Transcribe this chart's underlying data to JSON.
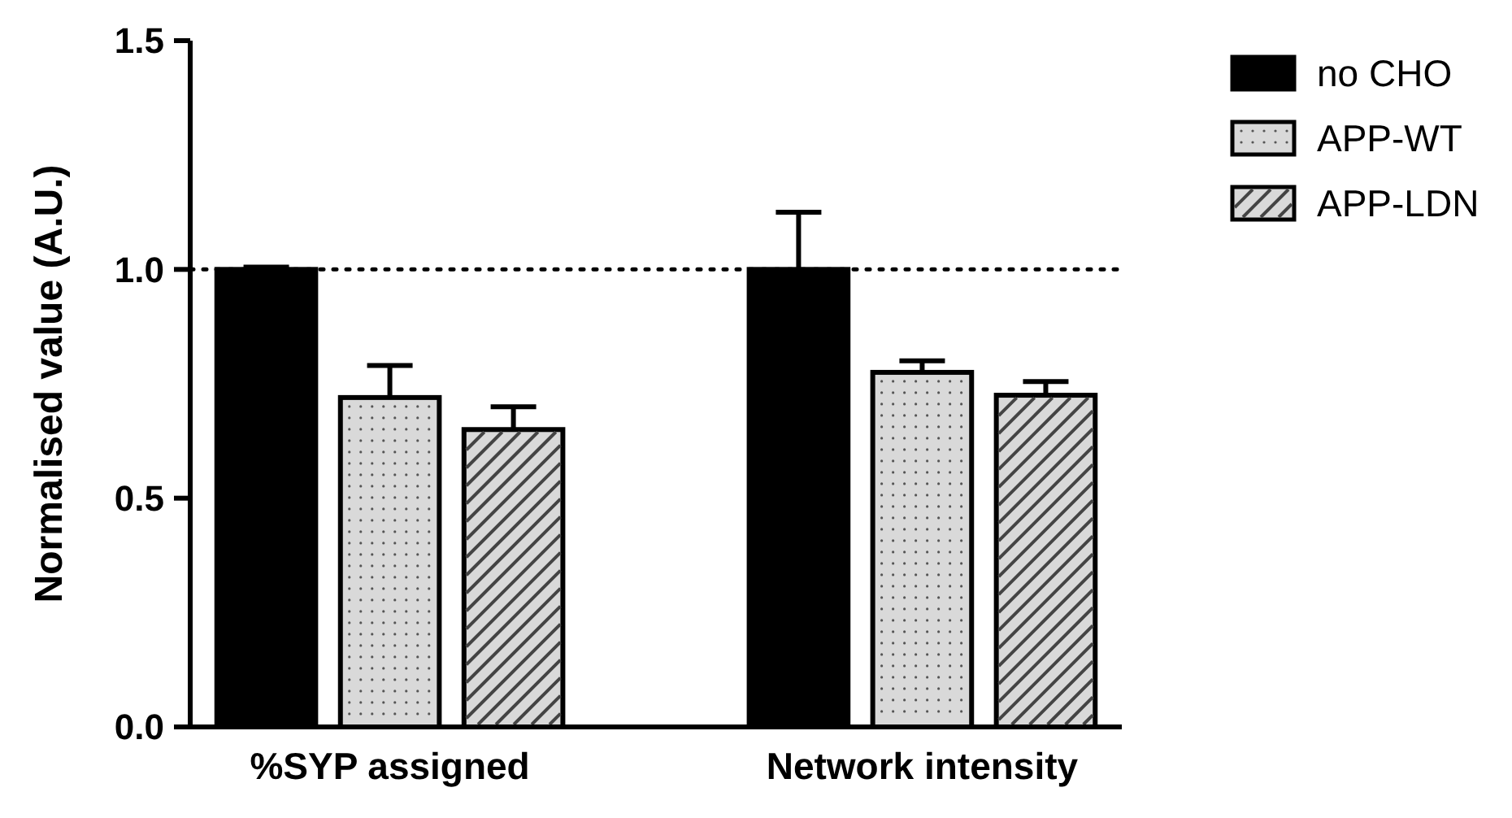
{
  "chart_data": {
    "type": "bar",
    "ylabel": "Normalised value (A.U.)",
    "categories": [
      "%SYP assigned",
      "Network intensity"
    ],
    "series": [
      {
        "name": "no CHO",
        "color": "#000000",
        "values": [
          1.0,
          1.0
        ],
        "errors": [
          [
            1.0,
            1.005
          ],
          [
            1.0,
            1.125
          ]
        ]
      },
      {
        "name": "APP-WT",
        "color": "#d9d9d9",
        "values": [
          0.72,
          0.775
        ],
        "errors": [
          [
            0.72,
            0.79
          ],
          [
            0.775,
            0.8
          ]
        ]
      },
      {
        "name": "APP-LDN",
        "color": "#d9d9d9",
        "values": [
          0.65,
          0.725
        ],
        "errors": [
          [
            0.65,
            0.7
          ],
          [
            0.725,
            0.755
          ]
        ]
      }
    ],
    "ylim": [
      0,
      1.5
    ],
    "yticks": [
      {
        "value": 0,
        "label": "0.0"
      },
      {
        "value": 0.5,
        "label": "0.5"
      },
      {
        "value": 1,
        "label": "1.0"
      },
      {
        "value": 1.5,
        "label": "1.5"
      }
    ],
    "ref_lines": [
      {
        "axis": "y",
        "value": 1,
        "color": "#000000",
        "line_style": "dotted"
      }
    ],
    "grid": false,
    "legend": "top right"
  }
}
